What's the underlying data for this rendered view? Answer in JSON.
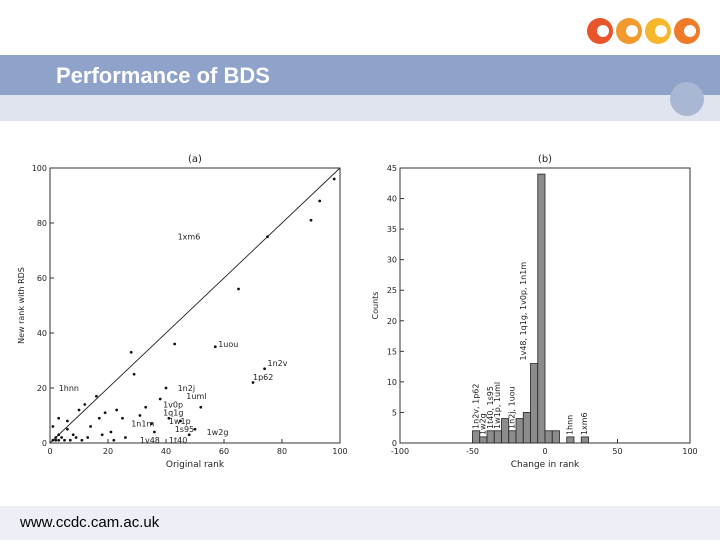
{
  "slide": {
    "title": "Performance of BDS",
    "footer_url": "www.ccdc.cam.ac.uk"
  },
  "logo": {
    "colors": [
      "#e8542c",
      "#f29a2e",
      "#f6b72d",
      "#ef7a2a"
    ]
  },
  "chart_data": [
    {
      "type": "scatter",
      "title": "(a)",
      "xlabel": "Original rank",
      "ylabel": "New rank with RDS",
      "xlim": [
        0,
        100
      ],
      "ylim": [
        0,
        100
      ],
      "xticks": [
        0,
        20,
        40,
        60,
        80,
        100
      ],
      "yticks": [
        0,
        20,
        40,
        60,
        80,
        100
      ],
      "diagonal": true,
      "grid": false,
      "points": [
        {
          "x": 1,
          "y": 1
        },
        {
          "x": 2,
          "y": 1
        },
        {
          "x": 2,
          "y": 2
        },
        {
          "x": 3,
          "y": 1
        },
        {
          "x": 3,
          "y": 3
        },
        {
          "x": 4,
          "y": 2
        },
        {
          "x": 5,
          "y": 1
        },
        {
          "x": 6,
          "y": 5
        },
        {
          "x": 7,
          "y": 1
        },
        {
          "x": 8,
          "y": 3
        },
        {
          "x": 9,
          "y": 2
        },
        {
          "x": 10,
          "y": 12
        },
        {
          "x": 11,
          "y": 1
        },
        {
          "x": 12,
          "y": 14
        },
        {
          "x": 14,
          "y": 6
        },
        {
          "x": 16,
          "y": 17
        },
        {
          "x": 18,
          "y": 3
        },
        {
          "x": 19,
          "y": 11
        },
        {
          "x": 21,
          "y": 4
        },
        {
          "x": 23,
          "y": 12
        },
        {
          "x": 25,
          "y": 9
        },
        {
          "x": 26,
          "y": 2
        },
        {
          "x": 28,
          "y": 33
        },
        {
          "x": 29,
          "y": 25
        },
        {
          "x": 31,
          "y": 10
        },
        {
          "x": 33,
          "y": 13
        },
        {
          "x": 35,
          "y": 7
        },
        {
          "x": 36,
          "y": 4
        },
        {
          "x": 38,
          "y": 16
        },
        {
          "x": 40,
          "y": 20
        },
        {
          "x": 41,
          "y": 9
        },
        {
          "x": 43,
          "y": 36
        },
        {
          "x": 45,
          "y": 8
        },
        {
          "x": 48,
          "y": 3
        },
        {
          "x": 50,
          "y": 5
        },
        {
          "x": 52,
          "y": 13
        },
        {
          "x": 57,
          "y": 35
        },
        {
          "x": 65,
          "y": 56
        },
        {
          "x": 70,
          "y": 22
        },
        {
          "x": 74,
          "y": 27
        },
        {
          "x": 75,
          "y": 75
        },
        {
          "x": 90,
          "y": 81
        },
        {
          "x": 93,
          "y": 88
        },
        {
          "x": 98,
          "y": 96
        },
        {
          "x": 1,
          "y": 6
        },
        {
          "x": 3,
          "y": 9
        },
        {
          "x": 6,
          "y": 8
        },
        {
          "x": 13,
          "y": 2
        },
        {
          "x": 17,
          "y": 9
        },
        {
          "x": 22,
          "y": 1
        }
      ],
      "annotations": [
        {
          "text": "1xm6",
          "x": 44,
          "y": 74
        },
        {
          "text": "1uou",
          "x": 58,
          "y": 35
        },
        {
          "text": "1n2v",
          "x": 75,
          "y": 28
        },
        {
          "text": "1p62",
          "x": 70,
          "y": 23
        },
        {
          "text": "1hnn",
          "x": 3,
          "y": 19
        },
        {
          "text": "1n2j",
          "x": 44,
          "y": 19
        },
        {
          "text": "1uml",
          "x": 47,
          "y": 16
        },
        {
          "text": "1v0p",
          "x": 39,
          "y": 13
        },
        {
          "text": "1q1g",
          "x": 39,
          "y": 10
        },
        {
          "text": "1w1p",
          "x": 41,
          "y": 7
        },
        {
          "text": "1n1m",
          "x": 28,
          "y": 6
        },
        {
          "text": "1s95",
          "x": 43,
          "y": 4
        },
        {
          "text": "1w2g",
          "x": 54,
          "y": 3
        },
        {
          "text": "1v48",
          "x": 31,
          "y": 0
        },
        {
          "text": "1t40",
          "x": 41,
          "y": 0
        }
      ]
    },
    {
      "type": "bar",
      "title": "(b)",
      "xlabel": "Change in rank",
      "ylabel": "Counts",
      "xlim": [
        -100,
        100
      ],
      "ylim": [
        0,
        45
      ],
      "xticks": [
        -100,
        -50,
        0,
        50,
        100
      ],
      "yticks": [
        0,
        5,
        10,
        15,
        20,
        25,
        30,
        35,
        40,
        45
      ],
      "bin_width": 5,
      "bars": [
        {
          "x": -50,
          "value": 2
        },
        {
          "x": -45,
          "value": 1
        },
        {
          "x": -40,
          "value": 2
        },
        {
          "x": -35,
          "value": 2
        },
        {
          "x": -30,
          "value": 4
        },
        {
          "x": -25,
          "value": 2
        },
        {
          "x": -20,
          "value": 4
        },
        {
          "x": -15,
          "value": 5
        },
        {
          "x": -10,
          "value": 13
        },
        {
          "x": -5,
          "value": 44
        },
        {
          "x": 0,
          "value": 2
        },
        {
          "x": 5,
          "value": 2
        },
        {
          "x": 15,
          "value": 1
        },
        {
          "x": 25,
          "value": 1
        }
      ],
      "annotations": [
        {
          "text": "1n2v, 1p62",
          "x": -46,
          "y": 2.3
        },
        {
          "text": "1w2g",
          "x": -41,
          "y": 1.3
        },
        {
          "text": "1t40, 1s95",
          "x": -36,
          "y": 2.3
        },
        {
          "text": "1w1p, 1uml",
          "x": -31,
          "y": 2.3
        },
        {
          "text": "1n2j, 1uou",
          "x": -21,
          "y": 2.3
        },
        {
          "text": "1v48, 1q1g, 1v0p, 1n1m",
          "x": -13,
          "y": 13.5
        },
        {
          "text": "1hnn",
          "x": 19,
          "y": 1.3
        },
        {
          "text": "1xm6",
          "x": 29,
          "y": 1.3
        }
      ]
    }
  ]
}
